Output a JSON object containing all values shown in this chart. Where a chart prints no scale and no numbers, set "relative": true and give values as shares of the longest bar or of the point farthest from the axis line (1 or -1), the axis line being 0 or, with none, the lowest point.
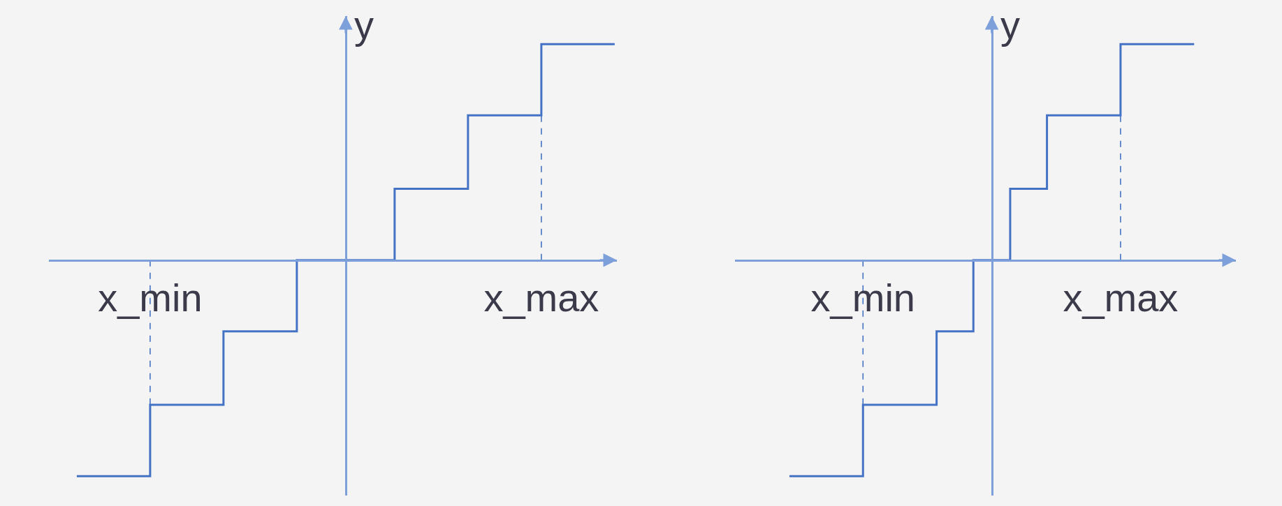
{
  "chart_data": [
    {
      "type": "step",
      "relative": true,
      "ylabel": "y",
      "tick_labels": "x",
      "categories": [
        null,
        null,
        null,
        "x_min",
        null,
        null,
        null,
        null,
        null,
        null,
        null,
        null,
        null,
        null,
        null,
        null,
        null,
        null,
        null,
        "x_max",
        null,
        null,
        null
      ],
      "series": [
        {
          "color": "#4472c4",
          "values": [
            -1,
            -1,
            -1,
            -0.67,
            -0.67,
            -0.67,
            -0.33,
            -0.33,
            -0.33,
            0,
            0,
            0,
            0,
            0.33,
            0.33,
            0.33,
            0.67,
            0.67,
            0.67,
            1,
            1,
            1,
            1
          ]
        }
      ],
      "ref_lines": [
        {
          "axis": "x",
          "value": "x_min",
          "color": "#4472c4",
          "line_style": "dashed"
        },
        {
          "axis": "x",
          "value": "x_max",
          "color": "#4472c4",
          "line_style": "dashed"
        }
      ]
    },
    {
      "type": "step",
      "relative": true,
      "ylabel": "y",
      "tick_labels": "x",
      "categories": [
        null,
        null,
        null,
        null,
        "x_min",
        null,
        null,
        null,
        null,
        null,
        null,
        null,
        null,
        null,
        null,
        null,
        null,
        null,
        "x_max",
        null,
        null,
        null,
        null
      ],
      "series": [
        {
          "color": "#4472c4",
          "values": [
            -1,
            -1,
            -1,
            -1,
            -0.67,
            -0.67,
            -0.67,
            -0.67,
            -0.33,
            -0.33,
            0,
            0,
            0.33,
            0.33,
            0.67,
            0.67,
            0.67,
            0.67,
            1,
            1,
            1,
            1,
            1
          ]
        }
      ],
      "ref_lines": [
        {
          "axis": "x",
          "value": "x_min",
          "color": "#4472c4",
          "line_style": "dashed"
        },
        {
          "axis": "x",
          "value": "x_max",
          "color": "#4472c4",
          "line_style": "dashed"
        }
      ]
    }
  ]
}
